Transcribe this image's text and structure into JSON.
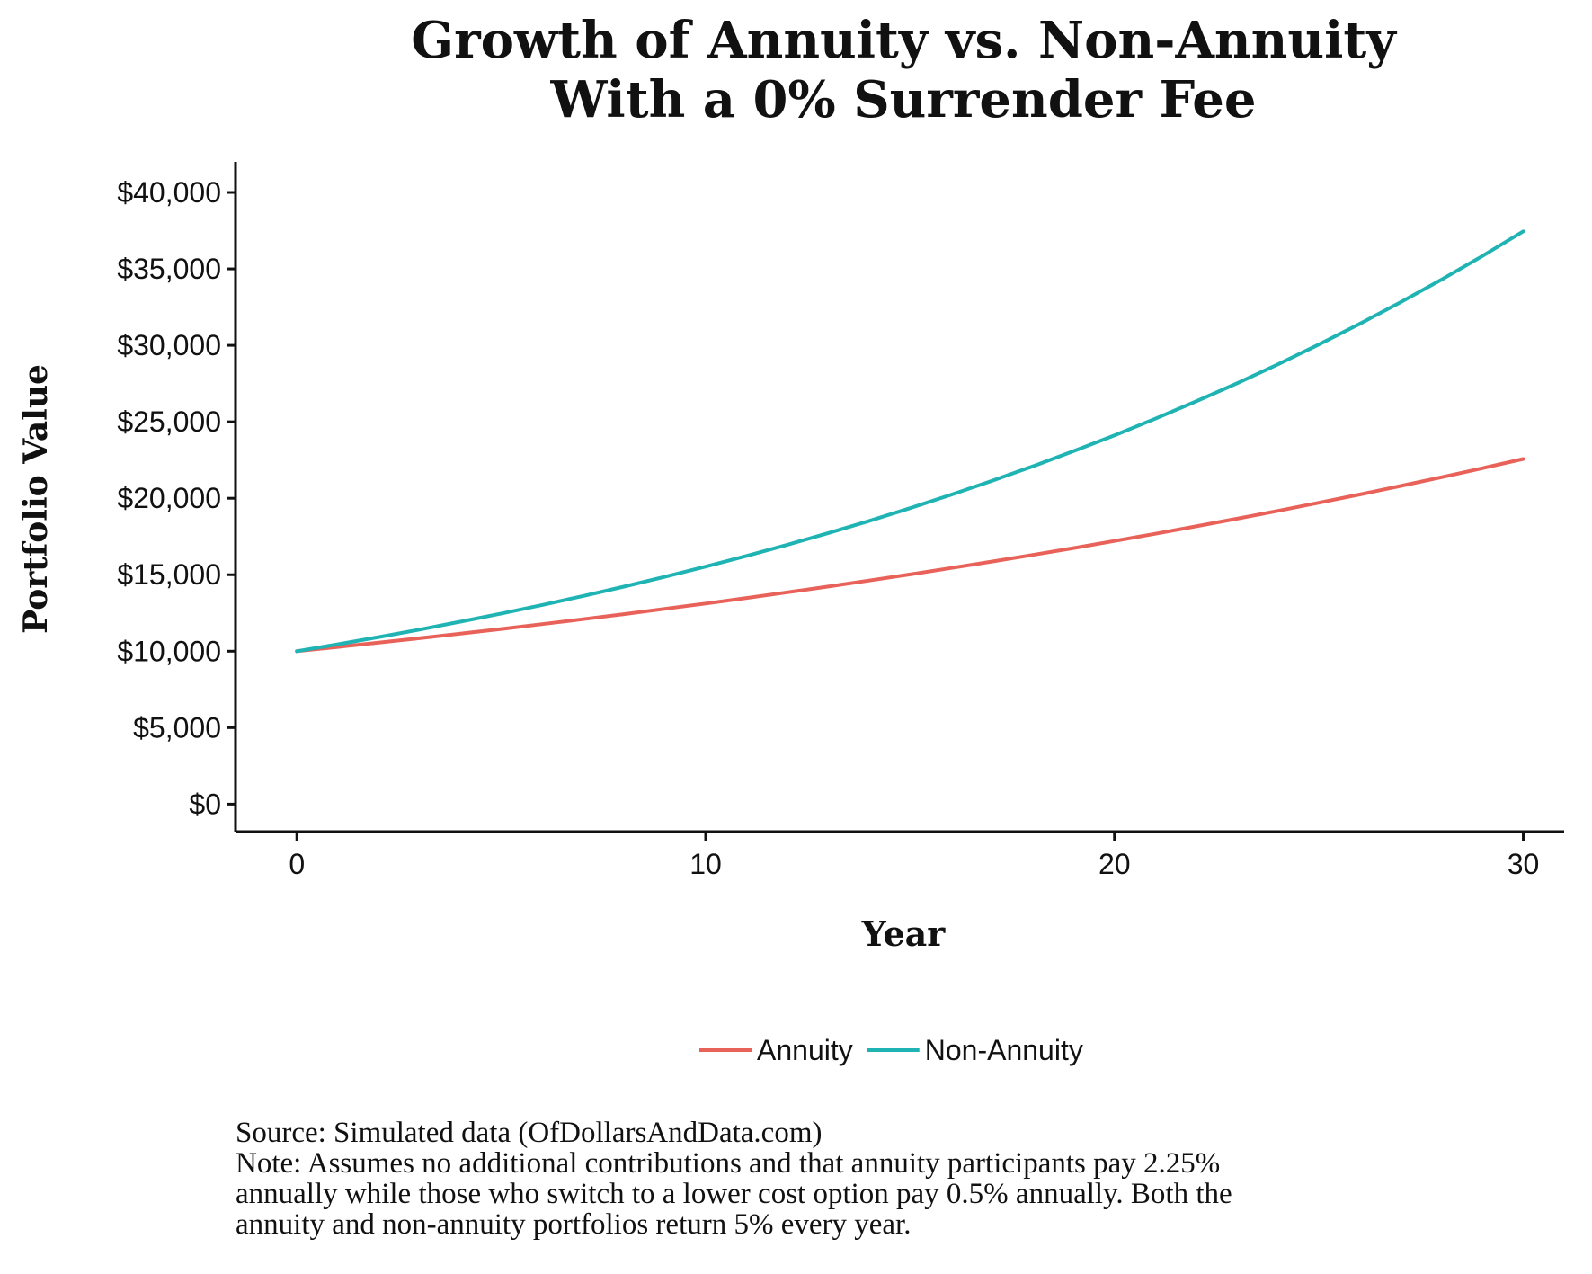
{
  "chart_data": {
    "type": "line",
    "title_lines": [
      "Growth of Annuity vs. Non-Annuity",
      "With a 0% Surrender Fee"
    ],
    "xlabel": "Year",
    "ylabel": "Portfolio Value",
    "xlim": [
      -1.5,
      31
    ],
    "ylim": [
      -1800,
      42000
    ],
    "x_ticks": [
      0,
      10,
      20,
      30
    ],
    "x_tick_labels": [
      "0",
      "10",
      "20",
      "30"
    ],
    "y_ticks": [
      0,
      5000,
      10000,
      15000,
      20000,
      25000,
      30000,
      35000,
      40000
    ],
    "y_tick_labels": [
      "$0",
      "$5,000",
      "$10,000",
      "$15,000",
      "$20,000",
      "$25,000",
      "$30,000",
      "$35,000",
      "$40,000"
    ],
    "grid": false,
    "legend_position": "bottom",
    "x": [
      0,
      1,
      2,
      3,
      4,
      5,
      6,
      7,
      8,
      9,
      10,
      11,
      12,
      13,
      14,
      15,
      16,
      17,
      18,
      19,
      20,
      21,
      22,
      23,
      24,
      25,
      26,
      27,
      28,
      29,
      30
    ],
    "series": [
      {
        "name": "Annuity",
        "color": "#E8625A",
        "values": [
          10000,
          10275,
          10558,
          10848,
          11146,
          11453,
          11768,
          12092,
          12424,
          12766,
          13117,
          13478,
          13849,
          14229,
          14621,
          15023,
          15436,
          15860,
          16296,
          16745,
          17205,
          17678,
          18164,
          18664,
          19177,
          19705,
          20247,
          20803,
          21375,
          21963,
          22567
        ]
      },
      {
        "name": "Non-Annuity",
        "color": "#1FB3B3",
        "values": [
          10000,
          10450,
          10920,
          11412,
          11925,
          12462,
          13023,
          13609,
          14221,
          14861,
          15530,
          16229,
          16959,
          17722,
          18520,
          19353,
          20224,
          21134,
          22085,
          23079,
          24117,
          25203,
          26337,
          27522,
          28760,
          30054,
          31407,
          32820,
          34297,
          35840,
          37453
        ]
      }
    ]
  },
  "caption": {
    "source": "Source: Simulated data (OfDollarsAndData.com)",
    "note_lines": [
      "Note: Assumes no additional contributions and that annuity participants pay 2.25%",
      "annually while those who switch to a lower cost option pay 0.5% annually. Both the",
      "annuity and non-annuity portfolios return 5% every year."
    ]
  }
}
